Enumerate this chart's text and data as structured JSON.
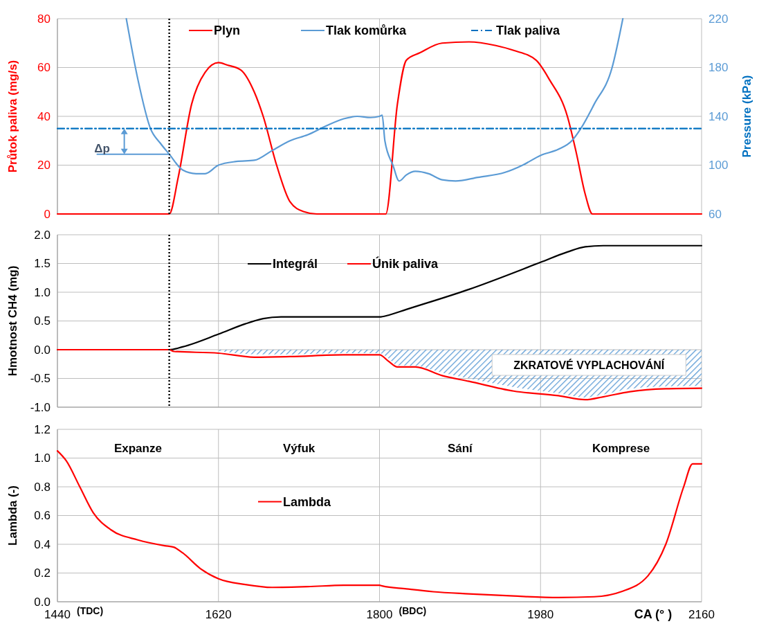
{
  "chart_data": [
    {
      "type": "line",
      "ylabel": "Průtok paliva (mg/s)",
      "y2label": "Pressure (kPa)",
      "xlim": [
        1440,
        2160
      ],
      "xticks": [
        1440,
        1620,
        1800,
        1980,
        2160
      ],
      "ylim": [
        0,
        80
      ],
      "yticks": [
        0,
        20,
        40,
        60,
        80
      ],
      "y2lim": [
        60,
        220
      ],
      "y2ticks": [
        60,
        100,
        140,
        180,
        220
      ],
      "grid": true,
      "legend": "top",
      "tick_labels": "y",
      "series": [
        {
          "name": "Plyn",
          "color": "#ff0000",
          "x": [
            1440,
            1565,
            1575,
            1590,
            1605,
            1620,
            1630,
            1645,
            1660,
            1670,
            1685,
            1700,
            1715,
            1730,
            1807,
            1820,
            1830,
            1845,
            1870,
            1900,
            1930,
            1950,
            1975,
            1990,
            2010,
            2020,
            2030,
            2038,
            2160
          ],
          "values": [
            0,
            0,
            15,
            45,
            58,
            62,
            61,
            59,
            50,
            40,
            20,
            5,
            1,
            0,
            0,
            45,
            63,
            66,
            70,
            70.5,
            69,
            67,
            63,
            55,
            40,
            25,
            8,
            0,
            0
          ]
        },
        {
          "name": "Tlak komůrka",
          "color": "#5b9bd5",
          "axis": "y2",
          "x": [
            1517,
            1530,
            1544,
            1555,
            1565,
            1580,
            1595,
            1605,
            1620,
            1640,
            1660,
            1680,
            1700,
            1720,
            1740,
            1760,
            1775,
            1790,
            1800,
            1803,
            1806,
            1815,
            1822,
            1830,
            1840,
            1855,
            1870,
            1885,
            1910,
            1940,
            1960,
            1980,
            2000,
            2015,
            2025,
            2040,
            2060,
            2072
          ],
          "values": [
            220,
            170,
            130,
            118,
            109,
            96,
            93,
            93,
            100,
            103,
            104,
            112,
            120,
            125,
            132,
            138,
            140,
            139,
            140,
            141,
            120,
            100,
            87,
            92,
            95,
            93,
            88,
            87,
            90,
            94,
            100,
            108,
            113,
            120,
            130,
            150,
            180,
            220
          ]
        },
        {
          "name": "Tlak paliva",
          "color": "#0070c0",
          "axis": "y2",
          "line_style": "dashdot",
          "x": [
            1440,
            2160
          ],
          "values": [
            130,
            130
          ]
        }
      ],
      "ref_lines": [
        {
          "axis": "x",
          "value": 1565,
          "line_style": "dotted",
          "color": "#000000"
        }
      ],
      "annotations": [
        {
          "text": "Δp",
          "x": 1565,
          "y": 24.5
        }
      ]
    },
    {
      "type": "line",
      "ylabel": "Hmotnost CH4 (mg)",
      "xlim": [
        1440,
        2160
      ],
      "xticks": [
        1440,
        1620,
        1800,
        1980,
        2160
      ],
      "ylim": [
        -1,
        2
      ],
      "yticks": [
        {
          "value": -1,
          "label": "-1.0"
        },
        {
          "value": -0.5,
          "label": "-0.5"
        },
        {
          "value": 0,
          "label": "0.0"
        },
        {
          "value": 0.5,
          "label": "0.5"
        },
        {
          "value": 1,
          "label": "1.0"
        },
        {
          "value": 1.5,
          "label": "1.5"
        },
        {
          "value": 2,
          "label": "2.0"
        }
      ],
      "grid": true,
      "legend": "top left",
      "tick_labels": "y",
      "series": [
        {
          "type": "area",
          "color": "#5b9bd5",
          "x": [
            1620,
            1660,
            1700,
            1760,
            1800,
            1810,
            1820,
            1840,
            1870,
            1900,
            1950,
            2000,
            2030,
            2050,
            2080,
            2120,
            2160
          ],
          "values": [
            -0.02,
            -0.08,
            -0.08,
            -0.06,
            -0.06,
            -0.15,
            -0.27,
            -0.28,
            -0.4,
            -0.5,
            -0.65,
            -0.76,
            -0.83,
            -0.78,
            -0.68,
            -0.64,
            -0.63
          ]
        },
        {
          "name": "Integrál",
          "color": "#000000",
          "x": [
            1440,
            1565,
            1580,
            1620,
            1650,
            1670,
            1690,
            1800,
            1810,
            1830,
            1900,
            1980,
            2010,
            2030,
            2050,
            2160
          ],
          "values": [
            0,
            0,
            0.05,
            0.27,
            0.45,
            0.54,
            0.57,
            0.57,
            0.6,
            0.7,
            1.05,
            1.52,
            1.7,
            1.79,
            1.81,
            1.81
          ]
        },
        {
          "name": "Únik paliva",
          "color": "#ff0000",
          "x": [
            1440,
            1565,
            1570,
            1620,
            1660,
            1700,
            1760,
            1800,
            1810,
            1820,
            1840,
            1870,
            1900,
            1950,
            2000,
            2030,
            2050,
            2080,
            2120,
            2160
          ],
          "values": [
            0,
            0,
            -0.03,
            -0.06,
            -0.13,
            -0.12,
            -0.09,
            -0.09,
            -0.2,
            -0.3,
            -0.3,
            -0.45,
            -0.55,
            -0.72,
            -0.8,
            -0.87,
            -0.82,
            -0.73,
            -0.68,
            -0.67
          ]
        }
      ],
      "ref_lines": [
        {
          "axis": "x",
          "value": 1565,
          "line_style": "dotted",
          "color": "#000000"
        }
      ],
      "annotations": [
        "ZKRATOVÉ VYPLACHOVÁNÍ"
      ]
    },
    {
      "type": "line",
      "ylabel": "Lambda (-)",
      "xlabel": "CA (° )",
      "xlim": [
        1440,
        2160
      ],
      "xticks": [
        1440,
        1620,
        1800,
        1980,
        2160
      ],
      "ylim": [
        0,
        1.2
      ],
      "yticks": [
        {
          "value": 0,
          "label": "0.0"
        },
        {
          "value": 0.2,
          "label": "0.2"
        },
        {
          "value": 0.4,
          "label": "0.4"
        },
        {
          "value": 0.6,
          "label": "0.6"
        },
        {
          "value": 0.8,
          "label": "0.8"
        },
        {
          "value": 1,
          "label": "1.0"
        },
        {
          "value": 1.2,
          "label": "1.2"
        }
      ],
      "grid": true,
      "legend": "left",
      "series": [
        {
          "name": "Lambda",
          "color": "#ff0000",
          "x": [
            1440,
            1450,
            1465,
            1480,
            1500,
            1530,
            1560,
            1570,
            1580,
            1600,
            1620,
            1650,
            1680,
            1720,
            1760,
            1800,
            1803,
            1830,
            1860,
            1900,
            1950,
            2000,
            2040,
            2070,
            2100,
            2120,
            2140,
            2150,
            2160
          ],
          "values": [
            1.05,
            0.98,
            0.8,
            0.62,
            0.5,
            0.43,
            0.39,
            0.38,
            0.34,
            0.23,
            0.16,
            0.12,
            0.1,
            0.105,
            0.115,
            0.115,
            0.11,
            0.09,
            0.07,
            0.055,
            0.04,
            0.03,
            0.035,
            0.07,
            0.18,
            0.4,
            0.8,
            0.96,
            0.96
          ]
        }
      ],
      "annotations": [
        "Expanze",
        "Výfuk",
        "Sání",
        "Komprese",
        "(TDC)",
        "(BDC)"
      ]
    }
  ]
}
